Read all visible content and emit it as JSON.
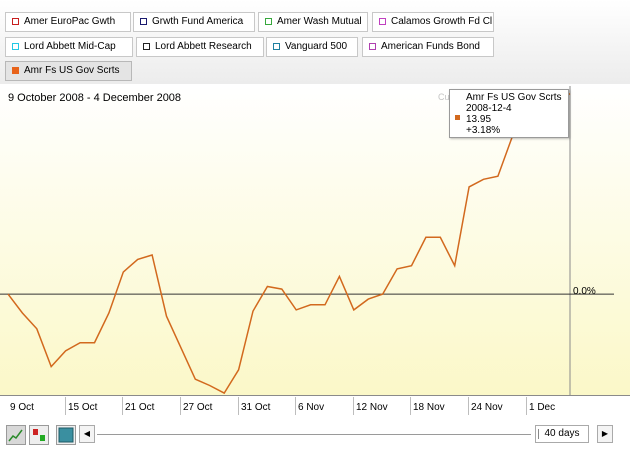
{
  "legend": {
    "funds": [
      {
        "label": "Amer EuroPac Gwth",
        "color": "#c81e1e",
        "filled": false
      },
      {
        "label": "Grwth Fund America",
        "color": "#1a1a6e",
        "filled": false
      },
      {
        "label": "Amer Wash Mutual",
        "color": "#36a83c",
        "filled": false
      },
      {
        "label": "Calamos Growth Fd Cl",
        "color": "#c040c0",
        "filled": false
      },
      {
        "label": "Lord Abbett Mid-Cap",
        "color": "#22c8e6",
        "filled": false
      },
      {
        "label": "Lord Abbett Research",
        "color": "#222222",
        "filled": false
      },
      {
        "label": "Vanguard 500",
        "color": "#2080a0",
        "filled": false
      },
      {
        "label": "American Funds Bond",
        "color": "#b040b0",
        "filled": false
      },
      {
        "label": "Amr Fs US Gov Scrts",
        "color": "#e8631a",
        "filled": true
      }
    ]
  },
  "chart": {
    "range_label": "9 October 2008 - 4 December 2008",
    "zero_label": "0.0%",
    "behind_text": "Cu",
    "line_color": "#d2691e",
    "background_top": "#ffffff",
    "background_bottom": "#fbf8c8"
  },
  "tooltip": {
    "name": "Amr Fs US Gov Scrts",
    "date": "2008-12-4",
    "value": "13.95",
    "change": "+3.18%"
  },
  "chart_data": {
    "type": "line",
    "x": [
      "2008-10-09",
      "2008-10-10",
      "2008-10-13",
      "2008-10-14",
      "2008-10-15",
      "2008-10-16",
      "2008-10-17",
      "2008-10-20",
      "2008-10-21",
      "2008-10-22",
      "2008-10-23",
      "2008-10-24",
      "2008-10-27",
      "2008-10-28",
      "2008-10-29",
      "2008-10-30",
      "2008-10-31",
      "2008-11-03",
      "2008-11-04",
      "2008-11-05",
      "2008-11-06",
      "2008-11-07",
      "2008-11-10",
      "2008-11-11",
      "2008-11-12",
      "2008-11-13",
      "2008-11-14",
      "2008-11-17",
      "2008-11-18",
      "2008-11-19",
      "2008-11-20",
      "2008-11-21",
      "2008-11-24",
      "2008-11-25",
      "2008-11-26",
      "2008-11-28",
      "2008-12-01",
      "2008-12-02",
      "2008-12-03",
      "2008-12-04"
    ],
    "series": [
      {
        "name": "Amr Fs US Gov Scrts",
        "values": [
          0.0,
          -0.3,
          -0.55,
          -1.15,
          -0.9,
          -0.77,
          -0.77,
          -0.3,
          0.35,
          0.55,
          0.62,
          -0.35,
          -0.85,
          -1.35,
          -1.45,
          -1.57,
          -1.2,
          -0.27,
          0.12,
          0.08,
          -0.25,
          -0.17,
          -0.17,
          0.28,
          -0.25,
          -0.08,
          0.0,
          0.4,
          0.45,
          0.9,
          0.9,
          0.45,
          1.7,
          1.82,
          1.87,
          2.5,
          2.8,
          2.95,
          3.05,
          3.18
        ]
      }
    ],
    "x_tick_labels": [
      "9 Oct",
      "15 Oct",
      "21 Oct",
      "27 Oct",
      "31 Oct",
      "6 Nov",
      "12 Nov",
      "18 Nov",
      "24 Nov",
      "1 Dec"
    ],
    "ylim": [
      -1.6,
      3.3
    ],
    "grid": false
  },
  "controls": {
    "period": "40 days",
    "scroll_left": "◀",
    "scroll_right": "▶"
  }
}
